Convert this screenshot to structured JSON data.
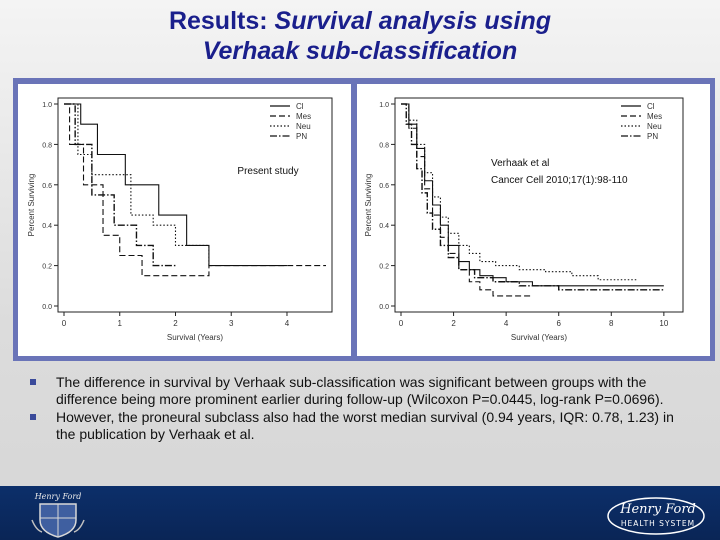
{
  "title": {
    "line1_plain": "Results: ",
    "line1_italic": "Survival analysis using",
    "line2": "Verhaak sub-classification"
  },
  "bullets": [
    "The difference in survival by Verhaak sub-classification was significant between groups with the difference being more prominent earlier during follow-up (Wilcoxon P=0.0445, log-rank P=0.0696).",
    "However, the proneural subclass also had the worst median survival (0.94 years, IQR: 0.78, 1.23) in the publication by Verhaak et al."
  ],
  "footer": {
    "logo_lines": [
      "Henry Ford",
      "HEALTH SYSTEM"
    ],
    "crest_text": "Henry Ford"
  },
  "chart_data": [
    {
      "type": "line",
      "annotation": "Present study",
      "xlabel": "Survival (Years)",
      "ylabel": "Percent Surviving",
      "xlim": [
        0,
        4.7
      ],
      "ylim": [
        0,
        1.0
      ],
      "xticks": [
        0,
        1,
        2,
        3,
        4
      ],
      "yticks": [
        0.0,
        0.2,
        0.4,
        0.6,
        0.8,
        1.0
      ],
      "legend_position": "top-right",
      "step": true,
      "series": [
        {
          "name": "Cl",
          "style": "solid",
          "x": [
            0,
            0.3,
            0.6,
            1.1,
            1.7,
            2.2,
            2.6,
            3.0,
            4.0
          ],
          "y": [
            1.0,
            0.9,
            0.75,
            0.6,
            0.45,
            0.3,
            0.2,
            0.2,
            0.2
          ]
        },
        {
          "name": "Mes",
          "style": "dashed",
          "x": [
            0,
            0.1,
            0.35,
            0.7,
            1.0,
            1.4,
            2.6,
            4.7
          ],
          "y": [
            1.0,
            0.8,
            0.6,
            0.35,
            0.25,
            0.15,
            0.2,
            0.2
          ]
        },
        {
          "name": "Neu",
          "style": "dotted",
          "x": [
            0,
            0.25,
            0.5,
            1.2,
            1.6,
            2.0,
            2.6
          ],
          "y": [
            1.0,
            0.75,
            0.65,
            0.45,
            0.4,
            0.3,
            0.2
          ]
        },
        {
          "name": "PN",
          "style": "dotdash",
          "x": [
            0,
            0.2,
            0.5,
            0.9,
            1.3,
            1.6,
            2.0
          ],
          "y": [
            1.0,
            0.8,
            0.55,
            0.4,
            0.3,
            0.2,
            0.2
          ]
        }
      ]
    },
    {
      "type": "line",
      "annotation": "Verhaak et al\nCancer Cell 2010;17(1):98-110",
      "xlabel": "Survival (Years)",
      "ylabel": "Percent Surviving",
      "xlim": [
        0,
        10.5
      ],
      "ylim": [
        0,
        1.0
      ],
      "xticks": [
        0,
        2,
        4,
        6,
        8,
        10
      ],
      "yticks": [
        0.0,
        0.2,
        0.4,
        0.6,
        0.8,
        1.0
      ],
      "legend_position": "top-right",
      "step": true,
      "series": [
        {
          "name": "Cl",
          "style": "solid",
          "x": [
            0,
            0.3,
            0.6,
            0.9,
            1.2,
            1.5,
            1.8,
            2.2,
            2.6,
            3.0,
            3.5,
            4.0,
            5.0,
            7.5,
            10
          ],
          "y": [
            1.0,
            0.9,
            0.78,
            0.62,
            0.5,
            0.4,
            0.3,
            0.22,
            0.18,
            0.15,
            0.14,
            0.12,
            0.1,
            0.1,
            0.1
          ]
        },
        {
          "name": "Mes",
          "style": "dashed",
          "x": [
            0,
            0.3,
            0.6,
            0.9,
            1.2,
            1.5,
            1.8,
            2.2,
            2.6,
            3.0,
            3.5,
            4.2,
            5.0
          ],
          "y": [
            1.0,
            0.88,
            0.74,
            0.58,
            0.45,
            0.34,
            0.26,
            0.18,
            0.12,
            0.08,
            0.05,
            0.05,
            0.05
          ]
        },
        {
          "name": "Neu",
          "style": "dotted",
          "x": [
            0,
            0.3,
            0.6,
            0.9,
            1.2,
            1.5,
            1.8,
            2.2,
            2.6,
            3.0,
            3.6,
            4.5,
            5.5,
            6.5,
            7.5,
            9.0
          ],
          "y": [
            1.0,
            0.92,
            0.8,
            0.66,
            0.54,
            0.44,
            0.36,
            0.3,
            0.26,
            0.22,
            0.2,
            0.18,
            0.17,
            0.15,
            0.13,
            0.13
          ]
        },
        {
          "name": "PN",
          "style": "dotdash",
          "x": [
            0,
            0.2,
            0.4,
            0.6,
            0.8,
            1.0,
            1.2,
            1.5,
            1.8,
            2.2,
            2.8,
            3.5,
            4.5,
            6.0,
            8.0,
            10.0
          ],
          "y": [
            1.0,
            0.9,
            0.8,
            0.68,
            0.56,
            0.46,
            0.38,
            0.3,
            0.24,
            0.18,
            0.14,
            0.12,
            0.1,
            0.08,
            0.08,
            0.08
          ]
        }
      ]
    }
  ]
}
